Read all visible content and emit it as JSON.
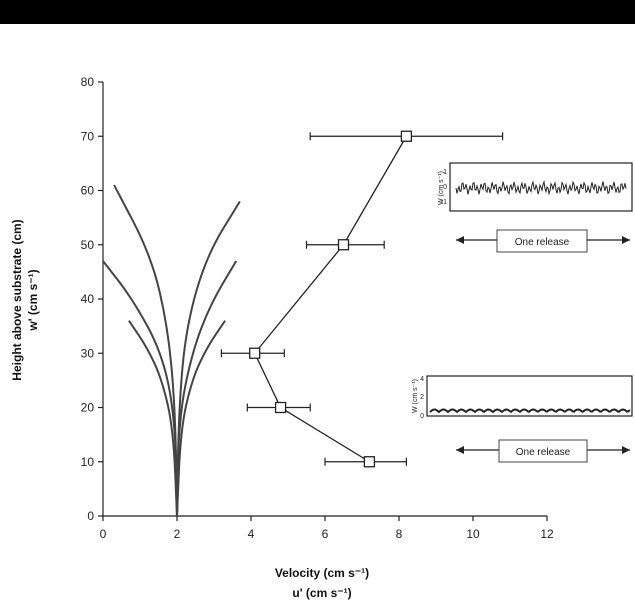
{
  "chart_data": {
    "type": "line",
    "x_axis": {
      "label_line1": "Velocity (cm s⁻¹)",
      "label_line2": "u' (cm s⁻¹)",
      "range": [
        0,
        12
      ],
      "ticks": [
        0,
        2,
        4,
        6,
        8,
        10,
        12
      ]
    },
    "y_axis": {
      "label_line1": "Height above substrate (cm)",
      "label_line2": "w' (cm s⁻¹)",
      "range": [
        0,
        80
      ],
      "ticks": [
        0,
        10,
        20,
        30,
        40,
        50,
        60,
        70,
        80
      ]
    },
    "series": [
      {
        "points": [
          {
            "x": 7.2,
            "y": 10,
            "xerr_low": 6.0,
            "xerr_high": 8.2
          },
          {
            "x": 4.8,
            "y": 20,
            "xerr_low": 3.9,
            "xerr_high": 5.6
          },
          {
            "x": 4.1,
            "y": 30,
            "xerr_low": 3.2,
            "xerr_high": 4.9
          },
          {
            "x": 6.5,
            "y": 50,
            "xerr_low": 5.5,
            "xerr_high": 7.6
          },
          {
            "x": 8.2,
            "y": 70,
            "xerr_low": 5.6,
            "xerr_high": 10.8
          }
        ]
      }
    ],
    "plume_curves": [
      {
        "side": "left",
        "points": [
          [
            2.0,
            0
          ],
          [
            1.95,
            20
          ],
          [
            1.75,
            35
          ],
          [
            1.3,
            48
          ],
          [
            0.3,
            61
          ]
        ]
      },
      {
        "side": "left",
        "points": [
          [
            2.0,
            0
          ],
          [
            1.95,
            18
          ],
          [
            1.6,
            30
          ],
          [
            0.8,
            40
          ],
          [
            0.0,
            47
          ]
        ]
      },
      {
        "side": "left",
        "points": [
          [
            2.0,
            0
          ],
          [
            1.9,
            16
          ],
          [
            1.6,
            25
          ],
          [
            1.2,
            31
          ],
          [
            0.7,
            36
          ]
        ]
      },
      {
        "side": "right",
        "points": [
          [
            2.0,
            0
          ],
          [
            2.05,
            20
          ],
          [
            2.25,
            35
          ],
          [
            2.8,
            48
          ],
          [
            3.7,
            58
          ]
        ]
      },
      {
        "side": "right",
        "points": [
          [
            2.0,
            0
          ],
          [
            2.05,
            18
          ],
          [
            2.4,
            30
          ],
          [
            2.9,
            39
          ],
          [
            3.6,
            47
          ]
        ]
      },
      {
        "side": "right",
        "points": [
          [
            2.0,
            0
          ],
          [
            2.1,
            16
          ],
          [
            2.4,
            25
          ],
          [
            2.8,
            31
          ],
          [
            3.3,
            36
          ]
        ]
      }
    ]
  },
  "insets": [
    {
      "id": "upper",
      "ylabel": "W (cm s⁻¹)",
      "ticks": [
        "1",
        "0",
        "-1"
      ],
      "caption": "One release",
      "style": "noisy"
    },
    {
      "id": "lower",
      "ylabel": "W (cm s⁻¹)",
      "ticks": [
        "4",
        "2",
        "0"
      ],
      "caption": "One release",
      "style": "flat"
    }
  ]
}
